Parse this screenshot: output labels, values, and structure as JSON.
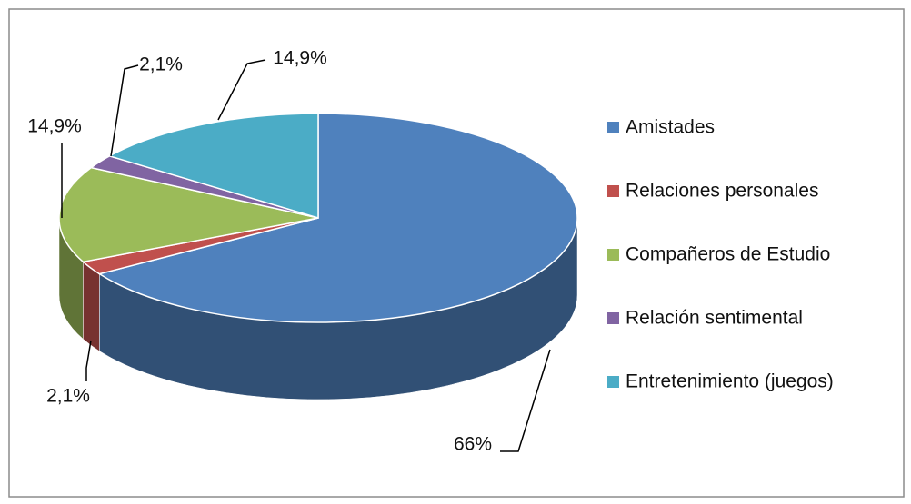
{
  "chart_data": {
    "type": "pie3d",
    "categories": [
      "Amistades",
      "Relaciones personales",
      "Compañeros de Estudio",
      "Relación sentimental",
      "Entretenimiento (juegos)"
    ],
    "values": [
      66,
      2.1,
      14.9,
      2.1,
      14.9
    ],
    "value_labels": [
      "66%",
      "2,1%",
      "14,9%",
      "2,1%",
      "14,9%"
    ],
    "colors": [
      "#4f81bd",
      "#c0504d",
      "#9bbb59",
      "#8064a2",
      "#4bacc6"
    ],
    "legend": "right"
  }
}
